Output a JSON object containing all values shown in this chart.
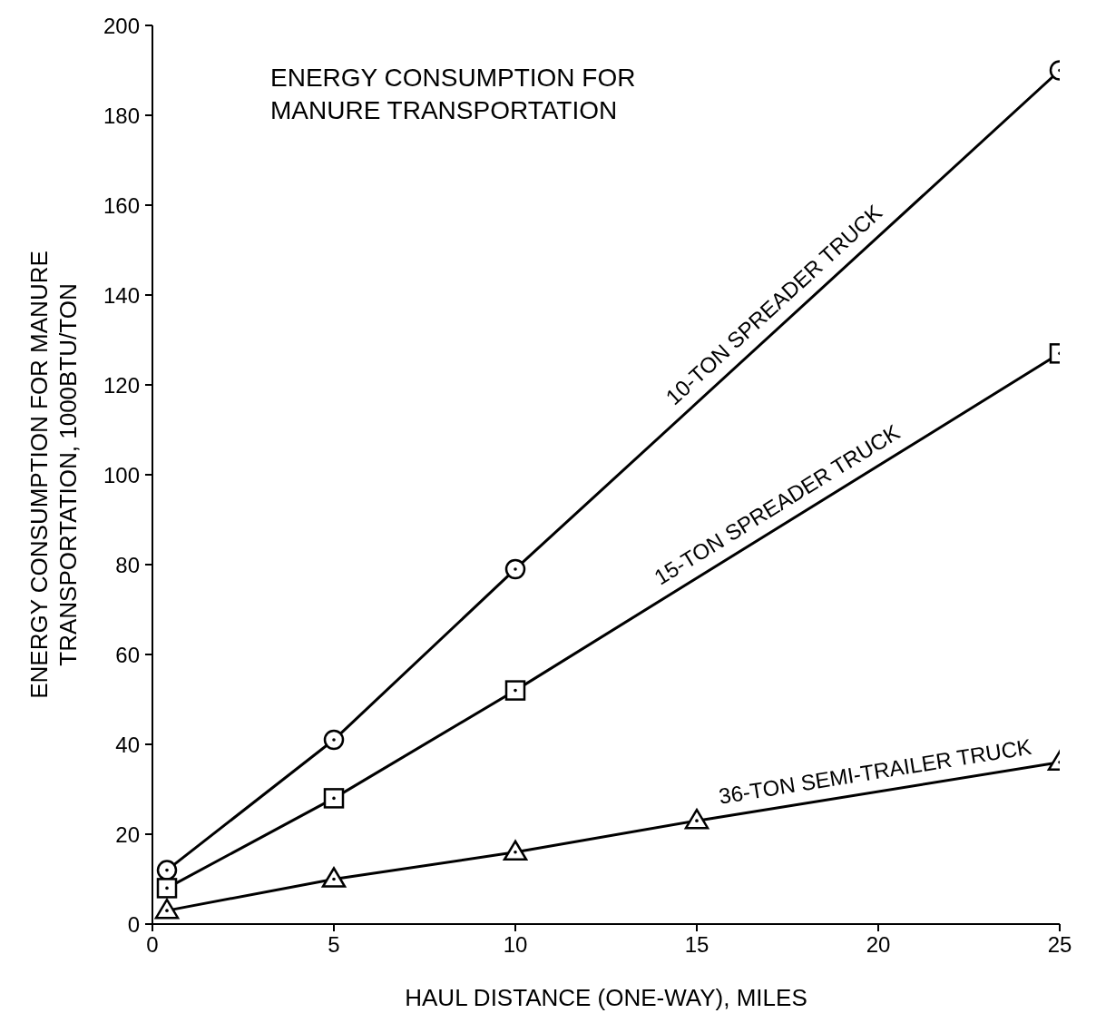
{
  "chart_data": {
    "type": "line",
    "title": "ENERGY CONSUMPTION FOR\nMANURE TRANSPORTATION",
    "xlabel": "HAUL  DISTANCE (ONE-WAY), MILES",
    "ylabel": "ENERGY CONSUMPTION FOR MANURE\nTRANSPORTATION, 1000BTU/TON",
    "xlim": [
      0,
      25
    ],
    "xticks": [
      0,
      5,
      10,
      15,
      20,
      25
    ],
    "ylim": [
      0,
      200
    ],
    "yticks": [
      0,
      20,
      40,
      60,
      80,
      100,
      120,
      140,
      160,
      180,
      200
    ],
    "grid": false,
    "legend": false,
    "line_style": "solid",
    "series": [
      {
        "name": "10-TON SPREADER TRUCK",
        "color": "#000000",
        "marker": "circle",
        "x": [
          0.4,
          5,
          10,
          25
        ],
        "values": [
          12,
          41,
          79,
          190
        ]
      },
      {
        "name": "15-TON SPREADER TRUCK",
        "color": "#000000",
        "marker": "square",
        "x": [
          0.4,
          5,
          10,
          25
        ],
        "values": [
          8,
          28,
          52,
          127
        ]
      },
      {
        "name": "36-TON SEMI-TRAILER TRUCK",
        "color": "#000000",
        "marker": "triangle",
        "x": [
          0.4,
          5,
          10,
          15,
          25
        ],
        "values": [
          3,
          10,
          16,
          23,
          36
        ]
      }
    ]
  }
}
